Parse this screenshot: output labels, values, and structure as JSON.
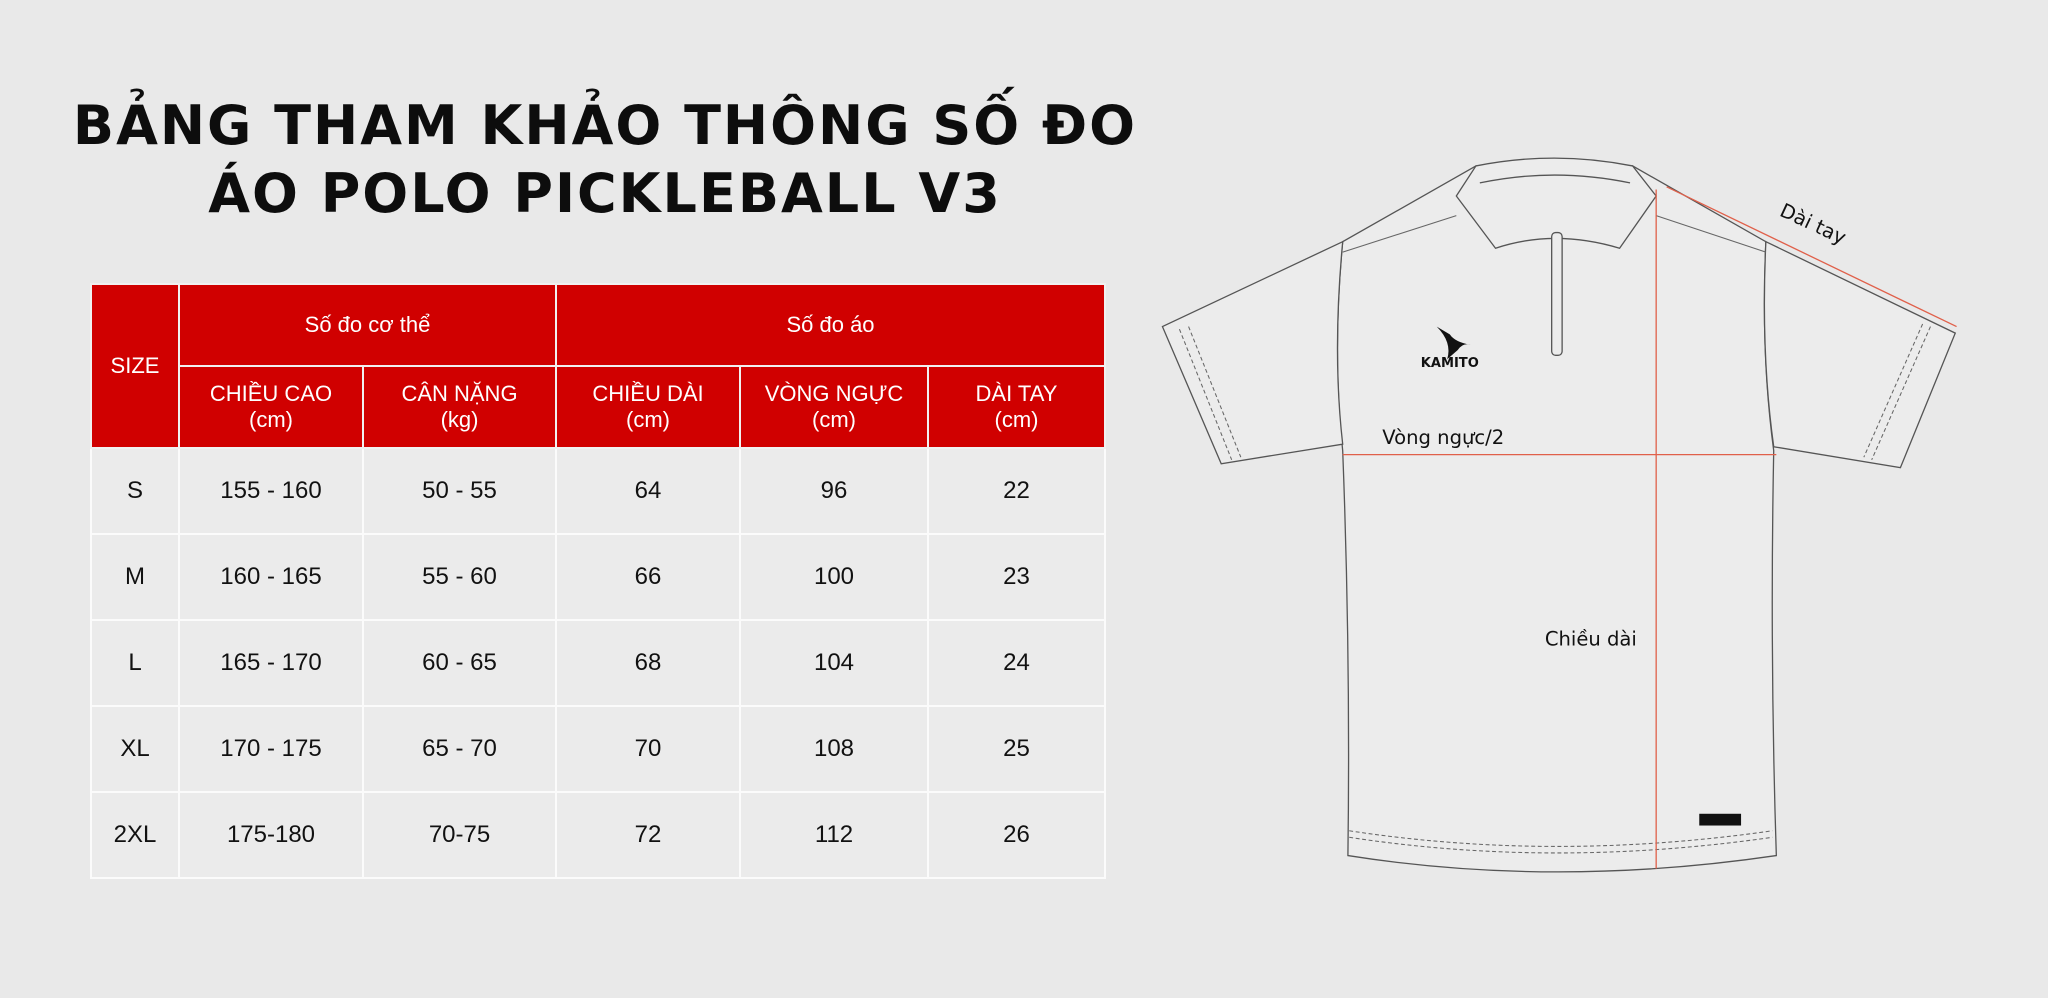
{
  "title": {
    "line1": "BẢNG THAM KHẢO THÔNG SỐ ĐO",
    "line2": "ÁO POLO PICKLEBALL V3"
  },
  "table": {
    "size_header": "SIZE",
    "group_body": "Số đo cơ thể",
    "group_shirt": "Số đo áo",
    "columns": [
      {
        "name": "CHIỀU CAO",
        "unit": "(cm)"
      },
      {
        "name": "CÂN NẶNG",
        "unit": "(kg)"
      },
      {
        "name": "CHIỀU DÀI",
        "unit": "(cm)"
      },
      {
        "name": "VÒNG NGỰC",
        "unit": "(cm)"
      },
      {
        "name": "DÀI TAY",
        "unit": "(cm)"
      }
    ],
    "rows": [
      [
        "S",
        "155 - 160",
        "50 - 55",
        "64",
        "96",
        "22"
      ],
      [
        "M",
        "160 - 165",
        "55 - 60",
        "66",
        "100",
        "23"
      ],
      [
        "L",
        "165 - 170",
        "60 - 65",
        "68",
        "104",
        "24"
      ],
      [
        "XL",
        "170 - 175",
        "65 - 70",
        "70",
        "108",
        "25"
      ],
      [
        "2XL",
        "175-180",
        "70-75",
        "72",
        "112",
        "26"
      ]
    ]
  },
  "diagram": {
    "sleeve_label": "Dài tay",
    "chest_label": "Vòng ngực/2",
    "length_label": "Chiều dài",
    "brand": "KAMITO"
  },
  "colors": {
    "header_red": "#d00000",
    "measure_line": "#e0604a",
    "background": "#e9e9e9"
  }
}
